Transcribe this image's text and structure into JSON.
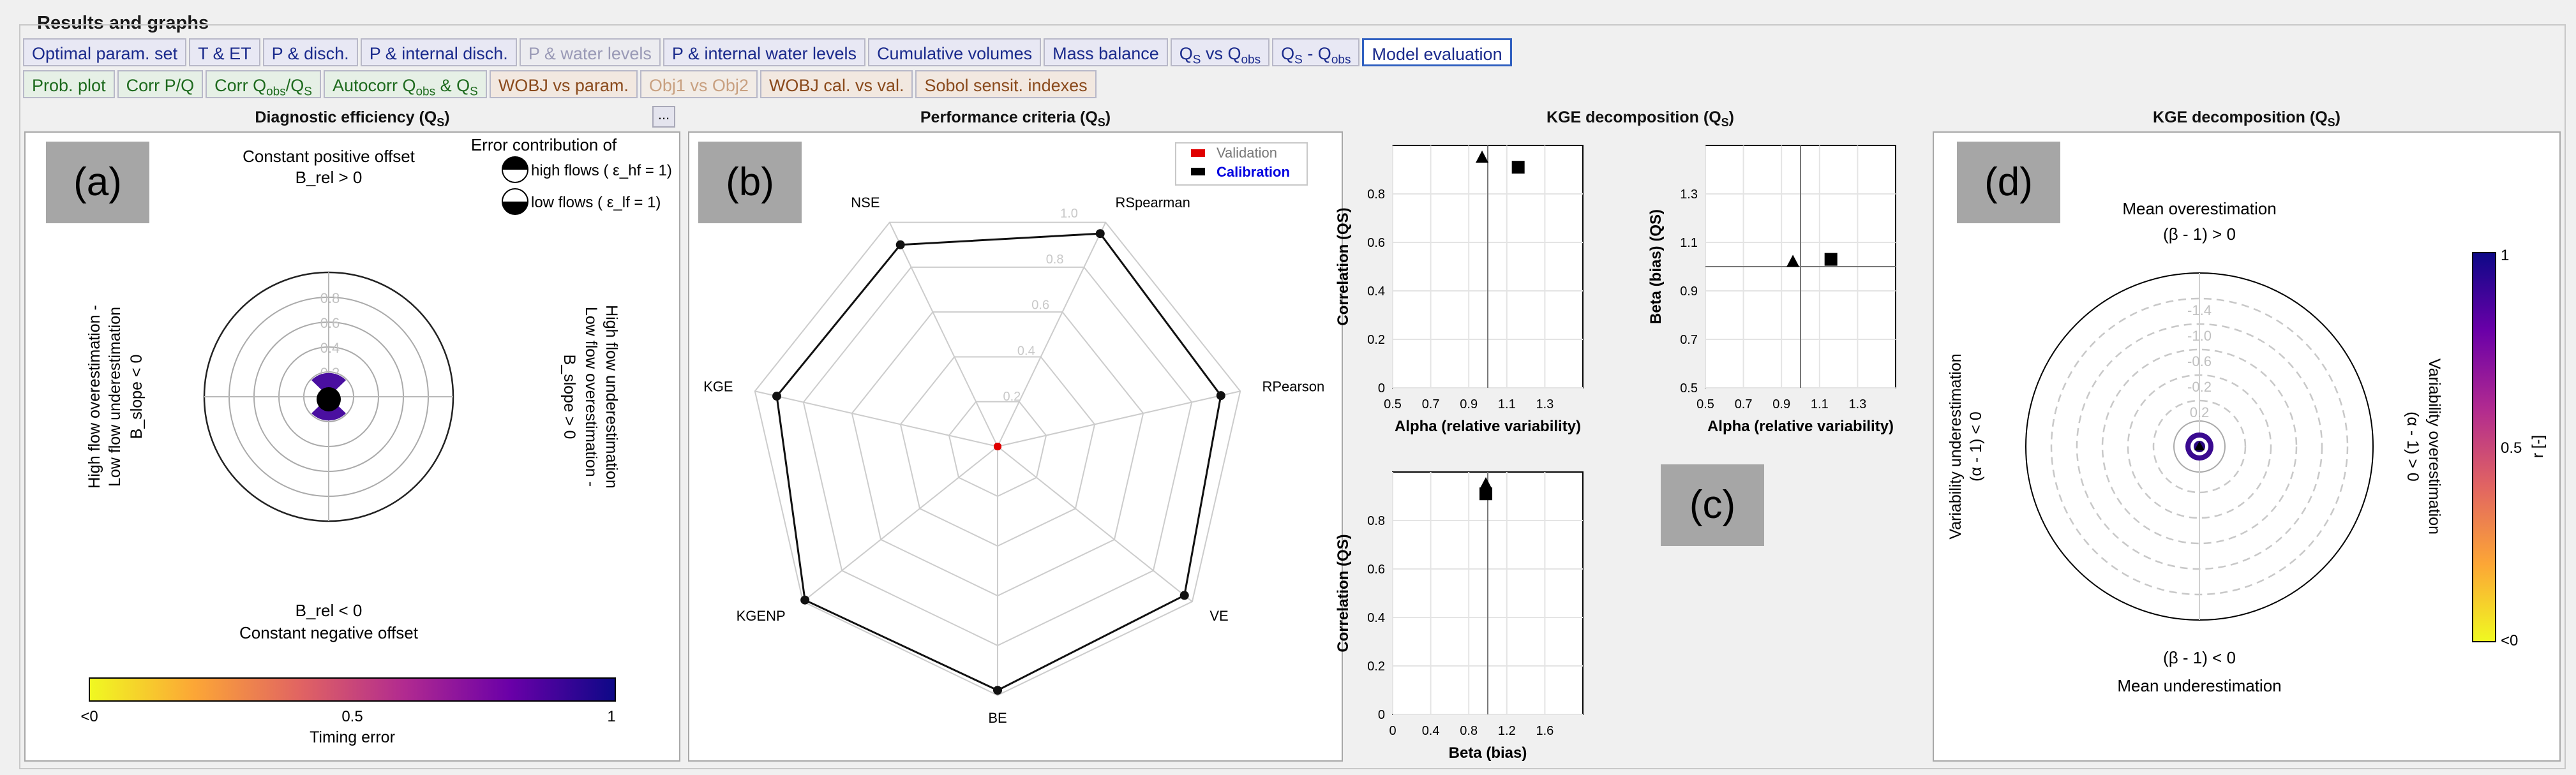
{
  "group_title": "Results and graphs",
  "tabs_row1": [
    {
      "label": "Optimal param. set",
      "style": "navy"
    },
    {
      "label": "T & ET",
      "style": "navy"
    },
    {
      "label": "P & disch.",
      "style": "navy"
    },
    {
      "label": "P & internal disch.",
      "style": "navy"
    },
    {
      "label": "P & water levels",
      "style": "gray"
    },
    {
      "label": "P & internal water levels",
      "style": "navy"
    },
    {
      "label": "Cumulative volumes",
      "style": "navy"
    },
    {
      "label": "Mass balance",
      "style": "navy"
    },
    {
      "label": "QS vs Qobs",
      "style": "navy"
    },
    {
      "label": "QS - Qobs",
      "style": "navy"
    },
    {
      "label": "Model evaluation",
      "style": "active"
    }
  ],
  "tabs_row2": [
    {
      "label": "Prob. plot",
      "style": "green"
    },
    {
      "label": "Corr P/Q",
      "style": "green"
    },
    {
      "label": "Corr Qobs/QS",
      "style": "green"
    },
    {
      "label": "Autocorr Qobs & QS",
      "style": "green"
    },
    {
      "label": "WOBJ vs param.",
      "style": "brown"
    },
    {
      "label": "Obj1 vs Obj2",
      "style": "lbrown"
    },
    {
      "label": "WOBJ cal. vs val.",
      "style": "brown"
    },
    {
      "label": "Sobol sensit. indexes",
      "style": "brown"
    }
  ],
  "more_button": "...",
  "panel_a": {
    "title": "Diagnostic efficiency (QS)",
    "badge": "(a)",
    "top_label_1": "Constant positive offset",
    "top_label_2": "B_rel > 0",
    "bottom_label_1": "B_rel < 0",
    "bottom_label_2": "Constant negative offset",
    "left_label_1": "High flow overestimation -",
    "left_label_2": "Low flow underestimation",
    "left_label_3": "B_slope < 0",
    "right_label_1": "B_slope > 0",
    "right_label_2": "Low flow overestimation -",
    "right_label_3": "High flow underestimation",
    "legend_title": "Error contribution of",
    "legend_high": "high flows ( ε_hf = 1)",
    "legend_low": "low flows ( ε_lf = 1)",
    "ring_labels": [
      "0.8",
      "0.6",
      "0.4",
      "0.2"
    ],
    "colorbar_ticks": [
      "<0",
      "0.5",
      "1"
    ],
    "colorbar_label": "Timing error"
  },
  "panel_b": {
    "title": "Performance criteria (QS)",
    "badge": "(b)",
    "legend": [
      {
        "name": "Validation",
        "color": "#e00000"
      },
      {
        "name": "Calibration",
        "color": "#0000e0"
      }
    ],
    "ring_labels": [
      "1.0",
      "0.8",
      "0.6",
      "0.4",
      "0.2"
    ]
  },
  "panel_c": {
    "title": "KGE decomposition (QS)",
    "badge": "(c)",
    "plot1": {
      "xlabel": "Alpha (relative variability)",
      "ylabel": "Correlation (QS)",
      "xticks": [
        "0.5",
        "0.7",
        "0.9",
        "1.1",
        "1.3"
      ],
      "yticks": [
        "0",
        "0.2",
        "0.4",
        "0.6",
        "0.8"
      ]
    },
    "plot2": {
      "xlabel": "Alpha (relative variability)",
      "ylabel": "Beta (bias) (QS)",
      "xticks": [
        "0.5",
        "0.7",
        "0.9",
        "1.1",
        "1.3"
      ],
      "yticks": [
        "0.5",
        "0.7",
        "0.9",
        "1.1",
        "1.3"
      ]
    },
    "plot3": {
      "xlabel": "Beta (bias)",
      "ylabel": "Correlation (QS)",
      "xticks": [
        "0",
        "0.4",
        "0.8",
        "1.2",
        "1.6"
      ],
      "yticks": [
        "0",
        "0.2",
        "0.4",
        "0.6",
        "0.8"
      ]
    }
  },
  "panel_d": {
    "title": "KGE decomposition (QS)",
    "badge": "(d)",
    "top_label_1": "Mean overestimation",
    "top_label_2": "(β - 1) > 0",
    "bottom_label_1": "(β - 1) < 0",
    "bottom_label_2": "Mean underestimation",
    "left_label_1": "Variability underestimation",
    "left_label_2": "(α - 1) < 0",
    "right_label_1": "(α - 1) > 0",
    "right_label_2": "Variability overestimation",
    "ring_labels": [
      "-1.4",
      "-1.0",
      "-0.6",
      "-0.2",
      "0.2"
    ],
    "colorbar_ticks": [
      "1",
      "0.5",
      "<0"
    ],
    "colorbar_label": "r [-]"
  },
  "chart_data": [
    {
      "type": "scatter",
      "chart": "Diagnostic efficiency polar plot",
      "points": [
        {
          "label": "model",
          "brel": 0.0,
          "bslope": 0.0,
          "de": 0.05
        }
      ],
      "colorbar": {
        "label": "Timing error",
        "range": [
          "<0",
          "1"
        ]
      }
    },
    {
      "type": "radar",
      "axes": [
        "RSpearman",
        "RPearson",
        "VE",
        "BE",
        "KGENP",
        "KGE",
        "NSE"
      ],
      "series": [
        {
          "name": "Calibration",
          "values": [
            0.95,
            0.92,
            0.96,
            0.98,
            0.99,
            0.91,
            0.9
          ]
        },
        {
          "name": "Validation",
          "values": [
            0,
            0,
            0,
            0,
            0,
            0,
            0
          ]
        }
      ],
      "rlim": [
        0,
        1
      ]
    },
    {
      "type": "scatter",
      "xlabel": "Alpha (relative variability)",
      "ylabel": "Correlation (QS)",
      "xlim": [
        0.5,
        1.5
      ],
      "ylim": [
        0,
        1
      ],
      "series": [
        {
          "marker": "triangle",
          "x": [
            0.97
          ],
          "y": [
            0.95
          ]
        },
        {
          "marker": "square",
          "x": [
            1.16
          ],
          "y": [
            0.91
          ]
        }
      ]
    },
    {
      "type": "scatter",
      "xlabel": "Alpha (relative variability)",
      "ylabel": "Beta (bias) (QS)",
      "xlim": [
        0.5,
        1.5
      ],
      "ylim": [
        0.5,
        1.5
      ],
      "series": [
        {
          "marker": "triangle",
          "x": [
            0.96
          ],
          "y": [
            1.02
          ]
        },
        {
          "marker": "square",
          "x": [
            1.16
          ],
          "y": [
            1.03
          ]
        }
      ]
    },
    {
      "type": "scatter",
      "xlabel": "Beta (bias)",
      "ylabel": "Correlation (QS)",
      "xlim": [
        0,
        2
      ],
      "ylim": [
        0,
        1
      ],
      "series": [
        {
          "marker": "triangle",
          "x": [
            0.98
          ],
          "y": [
            0.95
          ]
        },
        {
          "marker": "square",
          "x": [
            0.98
          ],
          "y": [
            0.91
          ]
        }
      ]
    }
  ]
}
